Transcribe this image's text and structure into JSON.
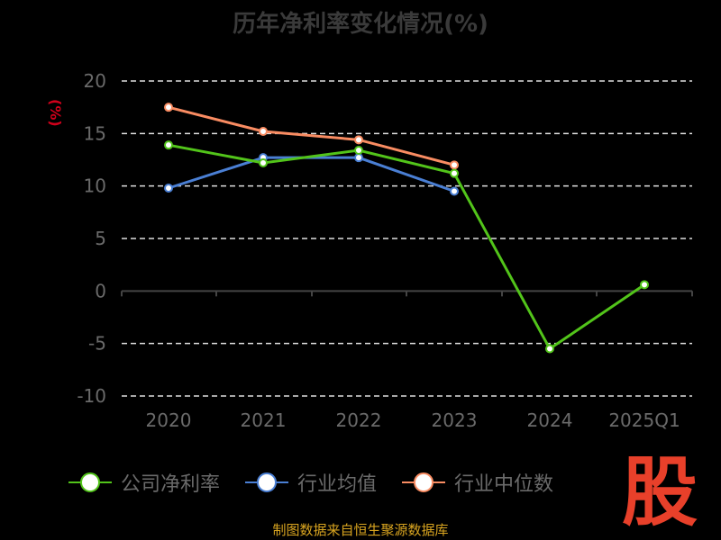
{
  "title": "历年净利率变化情况(%)",
  "source": "制图数据来自恒生聚源数据库",
  "logo_text": "股",
  "chart_data": {
    "type": "line",
    "title": "历年净利率变化情况(%)",
    "ylabel": "(%)",
    "categories": [
      "2020",
      "2021",
      "2022",
      "2023",
      "2024",
      "2025Q1"
    ],
    "yticks": [
      20,
      15,
      10,
      5,
      0,
      -5,
      -10
    ],
    "ylim": [
      -10,
      20
    ],
    "grid": true,
    "legend_position": "bottom",
    "series": [
      {
        "name": "公司净利率",
        "color": "#52c41a",
        "values": [
          13.9,
          12.2,
          13.4,
          11.2,
          -5.5,
          0.6
        ]
      },
      {
        "name": "行业均值",
        "color": "#4a7fd4",
        "values": [
          9.8,
          12.7,
          12.7,
          9.5,
          null,
          null
        ]
      },
      {
        "name": "行业中位数",
        "color": "#f98c62",
        "values": [
          17.5,
          15.2,
          14.4,
          12.0,
          null,
          null
        ]
      }
    ]
  }
}
